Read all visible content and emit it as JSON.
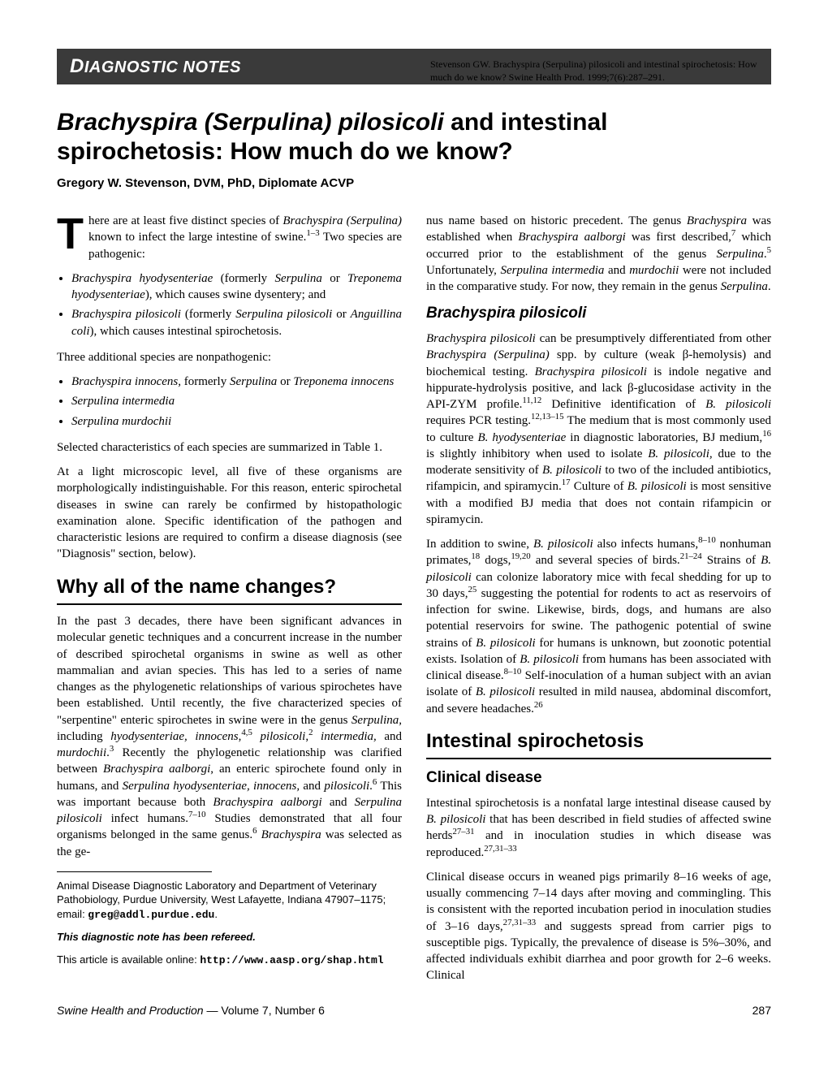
{
  "header": {
    "section_title_caps": "D",
    "section_title_rest": "IAGNOSTIC NOTES",
    "citation": "Stevenson GW. Brachyspira (Serpulina) pilosicoli and intestinal spirochetosis: How much do we know? Swine Health Prod. 1999;7(6):287–291."
  },
  "title": {
    "italic_part": "Brachyspira (Serpulina) pilosicoli",
    "rest": " and intestinal spirochetosis: How much do we know?"
  },
  "author": "Gregory W. Stevenson, DVM, PhD, Diplomate ACVP",
  "body": {
    "intro_first": "here are at least five distinct species of ",
    "intro_italic1": "Brachyspira (Serpulina)",
    "intro_after1": " known to infect the large intestine of swine.",
    "intro_sup1": "1–3",
    "intro_after2": " Two species are pathogenic:",
    "list1_a": "Brachyspira hyodysenteriae (formerly Serpulina or Treponema hyodysenteriae), which causes swine dysentery; and",
    "list1_b": "Brachyspira pilosicoli (formerly Serpulina pilosicoli or Anguillina coli), which causes intestinal spirochetosis.",
    "para2": "Three additional species are nonpathogenic:",
    "list2_a": "Brachyspira innocens, formerly Serpulina or Treponema innocens",
    "list2_b": "Serpulina intermedia",
    "list2_c": "Serpulina murdochii",
    "para3": "Selected characteristics of each species are summarized in Table 1.",
    "para4": "At a light microscopic level, all five of these organisms are morphologically indistinguishable. For this reason, enteric spirochetal diseases in swine can rarely be confirmed by histopathologic examination alone. Specific identification of the pathogen and characteristic lesions are required to confirm a disease diagnosis (see \"Diagnosis\" section, below).",
    "h2_1": "Why all of the name changes?",
    "para5": "In the past 3 decades, there have been significant advances in molecular genetic techniques and a concurrent increase in the number of described spirochetal organisms in swine as well as other mammalian and avian species. This has led to a series of name changes as the phylogenetic relationships of various spirochetes have been established. Until recently, the five characterized species of \"serpentine\" enteric spirochetes in swine were in the genus Serpulina, including hyodysenteriae, innocens,4,5 pilosicoli,2 intermedia, and murdochii.3 Recently the phylogenetic relationship was clarified between Brachyspira aalborgi, an enteric spirochete found only in humans, and Serpulina hyodysenteriae, innocens, and pilosicoli.6 This was important because both Brachyspira aalborgi and Serpulina pilosicoli infect humans.7–10 Studies demonstrated that all four organisms belonged in the same genus.6 Brachyspira was selected as the ge-",
    "para5b": "nus name based on historic precedent. The genus Brachyspira was established when Brachyspira aalborgi was first described,7 which occurred prior to the establishment of the genus Serpulina.5 Unfortunately, Serpulina intermedia and murdochii were not included in the comparative study. For now, they remain in the genus Serpulina.",
    "h3_1": "Brachyspira pilosicoli",
    "para6": "Brachyspira pilosicoli can be presumptively differentiated from other Brachyspira (Serpulina) spp. by culture (weak β-hemolysis) and biochemical testing. Brachyspira pilosicoli is indole negative and hippurate-hydrolysis positive, and lack β-glucosidase activity in the API-ZYM profile.11,12 Definitive identification of B. pilosicoli requires PCR testing.12,13–15 The medium that is most commonly used to culture B. hyodysenteriae in diagnostic laboratories, BJ medium,16 is slightly inhibitory when used to isolate B. pilosicoli, due to the moderate sensitivity of B. pilosicoli to two of the included antibiotics, rifampicin, and spiramycin.17 Culture of B. pilosicoli is most sensitive with a modified BJ media that does not contain rifampicin or spiramycin.",
    "para7": "In addition to swine, B. pilosicoli also infects humans,8–10 nonhuman primates,18 dogs,19,20 and several species of birds.21–24 Strains of B. pilosicoli can colonize laboratory mice with fecal shedding for up to 30 days,25 suggesting the potential for rodents to act as reservoirs of infection for swine. Likewise, birds, dogs, and humans are also potential reservoirs for swine. The pathogenic potential of swine strains of B. pilosicoli for humans is unknown, but zoonotic potential exists. Isolation of B. pilosicoli from humans has been associated with clinical disease.8–10 Self-inoculation of a human subject with an avian isolate of B. pilosicoli resulted in mild nausea, abdominal discomfort, and severe headaches.26",
    "h2_2": "Intestinal spirochetosis",
    "h3_2": "Clinical disease",
    "para8": "Intestinal spirochetosis is a nonfatal large intestinal disease caused by B. pilosicoli that has been described in field studies of affected swine herds27–31 and in inoculation studies in which disease was reproduced.27,31–33",
    "para9": "Clinical disease occurs in weaned pigs primarily 8–16 weeks of age, usually commencing 7–14 days after moving and commingling. This is consistent with the reported incubation period in inoculation studies of 3–16 days,27,31–33 and suggests spread from carrier pigs to susceptible pigs. Typically, the prevalence of disease is 5%–30%, and affected individuals exhibit diarrhea and poor growth for 2–6 weeks. Clinical"
  },
  "footnotes": {
    "affiliation": "Animal Disease Diagnostic Laboratory and Department of Veterinary Pathobiology, Purdue University, West Lafayette, Indiana 47907–1175; email: ",
    "email": "greg@addl.purdue.edu",
    "refereed": "This diagnostic note has been refereed.",
    "online_label": "This article is available online: ",
    "url": "http://www.aasp.org/shap.html"
  },
  "footer": {
    "journal_italic": "Swine Health and Production",
    "journal_rest": " — Volume 7, Number 6",
    "page": "287"
  }
}
